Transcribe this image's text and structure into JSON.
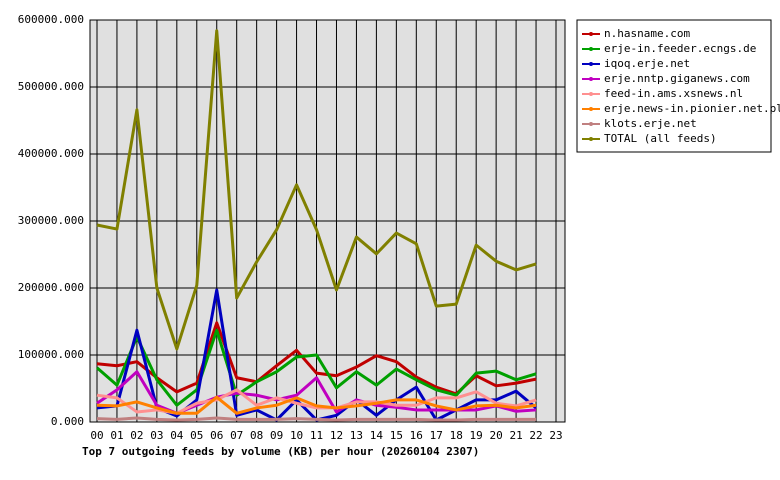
{
  "chart_data": {
    "type": "line",
    "title": "Top 7 outgoing feeds by volume (KB) per hour (20260104 2307)",
    "categories": [
      "00",
      "01",
      "02",
      "03",
      "04",
      "05",
      "06",
      "07",
      "08",
      "09",
      "10",
      "11",
      "12",
      "13",
      "14",
      "15",
      "16",
      "17",
      "18",
      "19",
      "20",
      "21",
      "22",
      "23"
    ],
    "ylim": [
      0,
      600000
    ],
    "yticks": [
      {
        "value": 0,
        "label": "0.000"
      },
      {
        "value": 100000,
        "label": "100000.000"
      },
      {
        "value": 200000,
        "label": "200000.000"
      },
      {
        "value": 300000,
        "label": "300000.000"
      },
      {
        "value": 400000,
        "label": "400000.000"
      },
      {
        "value": 500000,
        "label": "500000.000"
      },
      {
        "value": 600000,
        "label": "600000.000"
      }
    ],
    "grid": true,
    "legend": "right",
    "series": [
      {
        "name": "n.hasname.com",
        "color": "#c00000",
        "values": [
          87000,
          84000,
          90000,
          66000,
          45000,
          58000,
          148000,
          66000,
          60000,
          84000,
          107000,
          73000,
          69000,
          82000,
          99000,
          90000,
          67000,
          52000,
          42000,
          69000,
          54000,
          58000,
          64000,
          null
        ]
      },
      {
        "name": "erje-in.feeder.ecngs.de",
        "color": "#00a000",
        "values": [
          81000,
          55000,
          127000,
          63000,
          25000,
          48000,
          137000,
          40000,
          60000,
          75000,
          97000,
          100000,
          51000,
          75000,
          55000,
          79000,
          63000,
          48000,
          40000,
          73000,
          76000,
          63000,
          72000,
          null
        ]
      },
      {
        "name": "iqoq.erje.net",
        "color": "#0000c0",
        "values": [
          21000,
          24000,
          137000,
          21000,
          9000,
          33000,
          197000,
          10000,
          18000,
          3000,
          33000,
          3000,
          10000,
          33000,
          10000,
          33000,
          52000,
          3000,
          18000,
          33000,
          33000,
          46000,
          21000,
          null
        ]
      },
      {
        "name": "erje.nntp.giganews.com",
        "color": "#c000c0",
        "values": [
          28000,
          48000,
          75000,
          25000,
          13000,
          25000,
          37000,
          43000,
          40000,
          33000,
          40000,
          66000,
          15000,
          33000,
          25000,
          22000,
          18000,
          18000,
          18000,
          18000,
          24000,
          16000,
          18000,
          null
        ]
      },
      {
        "name": "feed-in.ams.xsnews.nl",
        "color": "#ff9090",
        "values": [
          40000,
          36000,
          15000,
          18000,
          13000,
          28000,
          33000,
          48000,
          25000,
          36000,
          28000,
          21000,
          21000,
          30000,
          30000,
          25000,
          25000,
          36000,
          36000,
          45000,
          28000,
          24000,
          33000,
          null
        ]
      },
      {
        "name": "erje.news-in.pionier.net.pl",
        "color": "#ff8000",
        "values": [
          25000,
          24000,
          30000,
          21000,
          13000,
          13000,
          37000,
          13000,
          21000,
          25000,
          36000,
          24000,
          21000,
          24000,
          28000,
          33000,
          33000,
          24000,
          18000,
          24000,
          25000,
          21000,
          25000,
          null
        ]
      },
      {
        "name": "klots.erje.net",
        "color": "#c08080",
        "values": [
          5000,
          4000,
          6000,
          4000,
          3000,
          4000,
          6000,
          4000,
          4000,
          4000,
          5000,
          4000,
          3000,
          4000,
          4000,
          4000,
          4000,
          3000,
          3000,
          4000,
          4000,
          4000,
          4000,
          null
        ]
      },
      {
        "name": "TOTAL (all feeds)",
        "color": "#808000",
        "values": [
          294000,
          288000,
          466000,
          200000,
          109000,
          204000,
          584000,
          185000,
          239000,
          287000,
          354000,
          287000,
          197000,
          276000,
          251000,
          282000,
          266000,
          173000,
          176000,
          264000,
          240000,
          227000,
          236000,
          null
        ]
      }
    ]
  }
}
